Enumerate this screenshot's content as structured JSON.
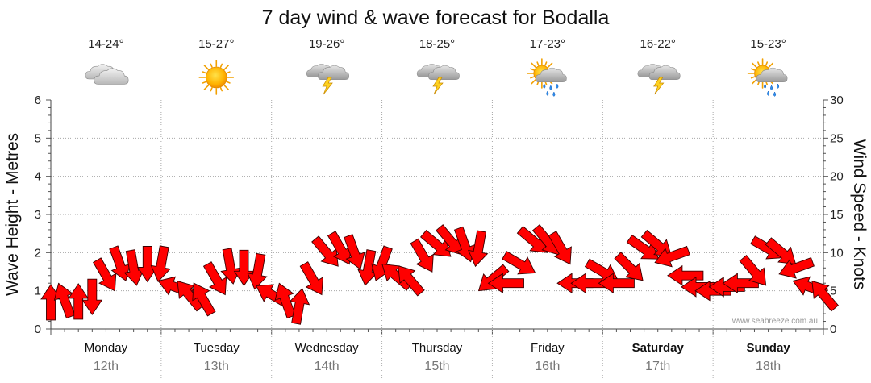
{
  "chart_data": {
    "type": "line",
    "title": "7 day wind & wave forecast for Bodalla",
    "ylabel_left": "Wave Height - Metres",
    "ylabel_right": "Wind Speed - Knots",
    "ylim_left": [
      0,
      6
    ],
    "ylim_right": [
      0,
      30
    ],
    "yticks_left": [
      "0",
      "1",
      "2",
      "3",
      "4",
      "5",
      "6"
    ],
    "yticks_right": [
      "0",
      "5",
      "10",
      "15",
      "20",
      "25",
      "30"
    ],
    "grid": true,
    "days": [
      {
        "name": "Monday",
        "date": "12th",
        "temp": "14-24°",
        "icon": "cloudy-icon",
        "bold": false
      },
      {
        "name": "Tuesday",
        "date": "13th",
        "temp": "15-27°",
        "icon": "sunny-icon",
        "bold": false
      },
      {
        "name": "Wednesday",
        "date": "14th",
        "temp": "19-26°",
        "icon": "thunderstorm-icon",
        "bold": false
      },
      {
        "name": "Thursday",
        "date": "15th",
        "temp": "18-25°",
        "icon": "thunderstorm-icon",
        "bold": false
      },
      {
        "name": "Friday",
        "date": "16th",
        "temp": "17-23°",
        "icon": "sun-shower-icon",
        "bold": false
      },
      {
        "name": "Saturday",
        "date": "17th",
        "temp": "16-22°",
        "icon": "thunderstorm-icon",
        "bold": true
      },
      {
        "name": "Sunday",
        "date": "18th",
        "temp": "15-23°",
        "icon": "sun-shower-icon",
        "bold": true
      }
    ],
    "series": [
      {
        "name": "Wind Speed - Knots",
        "axis": "right",
        "marker": "wind-direction-arrow",
        "color": "#ff0000",
        "x_day": [
          0.0,
          0.125,
          0.25,
          0.375,
          0.5,
          0.625,
          0.75,
          0.875,
          1.0,
          1.125,
          1.25,
          1.375,
          1.5,
          1.625,
          1.75,
          1.875,
          2.0,
          2.125,
          2.25,
          2.375,
          2.5,
          2.625,
          2.75,
          2.875,
          3.0,
          3.125,
          3.25,
          3.375,
          3.5,
          3.625,
          3.75,
          3.875,
          4.0,
          4.125,
          4.25,
          4.375,
          4.5,
          4.625,
          4.75,
          4.875,
          5.0,
          5.125,
          5.25,
          5.375,
          5.5,
          5.625,
          5.75,
          5.875,
          6.0,
          6.125,
          6.25,
          6.375,
          6.5,
          6.625,
          6.75,
          6.875,
          7.0
        ],
        "values": [
          3.5,
          3.8,
          3.6,
          4.2,
          7.0,
          8.5,
          8.0,
          8.5,
          8.5,
          5.5,
          4.5,
          4.0,
          6.5,
          8.2,
          8.0,
          7.5,
          4.5,
          3.8,
          3.0,
          6.5,
          10.0,
          10.5,
          10.0,
          8.0,
          8.5,
          7.0,
          6.5,
          9.5,
          11.0,
          11.5,
          11.0,
          10.5,
          6.5,
          6.0,
          8.5,
          11.5,
          11.5,
          10.5,
          6.0,
          6.0,
          7.5,
          6.0,
          8.0,
          10.5,
          11.0,
          9.5,
          7.0,
          5.5,
          5.0,
          5.5,
          6.0,
          7.5,
          10.5,
          10.0,
          8.0,
          5.5,
          4.5
        ],
        "directions_deg": [
          270,
          250,
          270,
          90,
          60,
          70,
          80,
          90,
          100,
          200,
          230,
          240,
          60,
          80,
          90,
          100,
          210,
          250,
          280,
          60,
          50,
          60,
          70,
          100,
          110,
          220,
          230,
          60,
          40,
          50,
          70,
          100,
          140,
          180,
          30,
          40,
          50,
          60,
          180,
          180,
          30,
          180,
          45,
          35,
          40,
          160,
          180,
          180,
          180,
          180,
          180,
          50,
          30,
          40,
          160,
          200,
          230
        ]
      }
    ],
    "credit": "www.seabreeze.com.au"
  }
}
